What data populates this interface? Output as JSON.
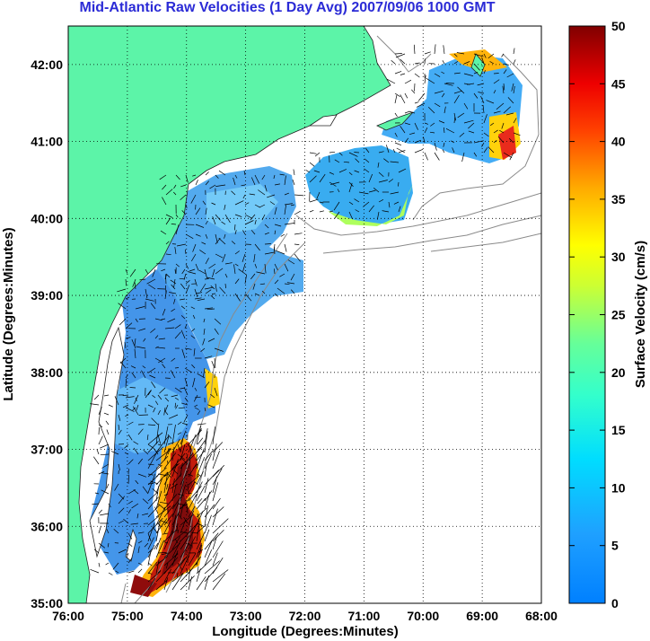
{
  "title": "Mid-Atlantic Raw Velocities (1 Day Avg) 2007/09/06 1000 GMT",
  "map": {
    "xlabel": "Longitude (Degrees:Minutes)",
    "ylabel": "Latitude (Degrees:Minutes)",
    "x_ticks": [
      "76:00",
      "75:00",
      "74:00",
      "73:00",
      "72:00",
      "71:00",
      "70:00",
      "69:00",
      "68:00"
    ],
    "y_ticks": [
      "35:00",
      "36:00",
      "37:00",
      "38:00",
      "39:00",
      "40:00",
      "41:00",
      "42:00"
    ],
    "xlim": [
      -76,
      -68
    ],
    "ylim": [
      35,
      42.5
    ],
    "land_color": "#5cf4a8",
    "grid": "dotted"
  },
  "colorbar": {
    "label": "Surface Velocity (cm/s)",
    "ticks": [
      "0",
      "5",
      "10",
      "15",
      "20",
      "25",
      "30",
      "35",
      "40",
      "45",
      "50"
    ],
    "range": [
      0,
      50
    ],
    "colormap": "jet"
  }
}
